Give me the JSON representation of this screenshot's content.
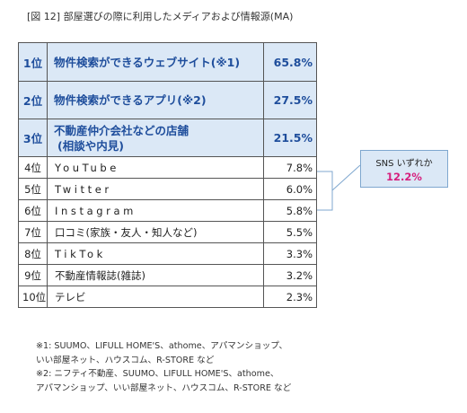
{
  "title": "[図 12] 部屋選びの際に利用したメディアおよび情報源(MA)",
  "rows": [
    {
      "rank": "1位",
      "name": "物件検索ができるウェブサイト(※1)",
      "value": "65.8%"
    },
    {
      "rank": "2位",
      "name": "物件検索ができるアプリ(※2)",
      "value": "27.5%"
    },
    {
      "rank": "3位",
      "name_line1": "不動産仲介会社などの店舗",
      "name_line2": "(相談や内見)",
      "value": "21.5%"
    },
    {
      "rank": "4位",
      "name": "YouTube",
      "value": "7.8%"
    },
    {
      "rank": "5位",
      "name": "Twitter",
      "value": "6.0%"
    },
    {
      "rank": "6位",
      "name": "Instagram",
      "value": "5.8%"
    },
    {
      "rank": "7位",
      "name": "口コミ(家族・友人・知人など)",
      "value": "5.5%"
    },
    {
      "rank": "8位",
      "name": "TikTok",
      "value": "3.3%"
    },
    {
      "rank": "9位",
      "name": "不動産情報誌(雑誌)",
      "value": "3.2%"
    },
    {
      "rank": "10位",
      "name": "テレビ",
      "value": "2.3%"
    }
  ],
  "sns": {
    "label": "SNS いずれか",
    "value": "12.2%"
  },
  "notes": [
    "※1: SUUMO、LIFULL HOME'S、athome、アパマンショップ、",
    "いい部屋ネット、ハウスコム、R-STORE など",
    "※2: ニフティ不動産、SUUMO、LIFULL HOME'S、athome、",
    "アパマンショップ、いい部屋ネット、ハウスコム、R-STORE など"
  ],
  "colors": {
    "highlight_bg": "#dbe8f6",
    "highlight_text": "#1f4e9c",
    "sns_value": "#d61f7d",
    "bracket": "#7fa7cf"
  }
}
